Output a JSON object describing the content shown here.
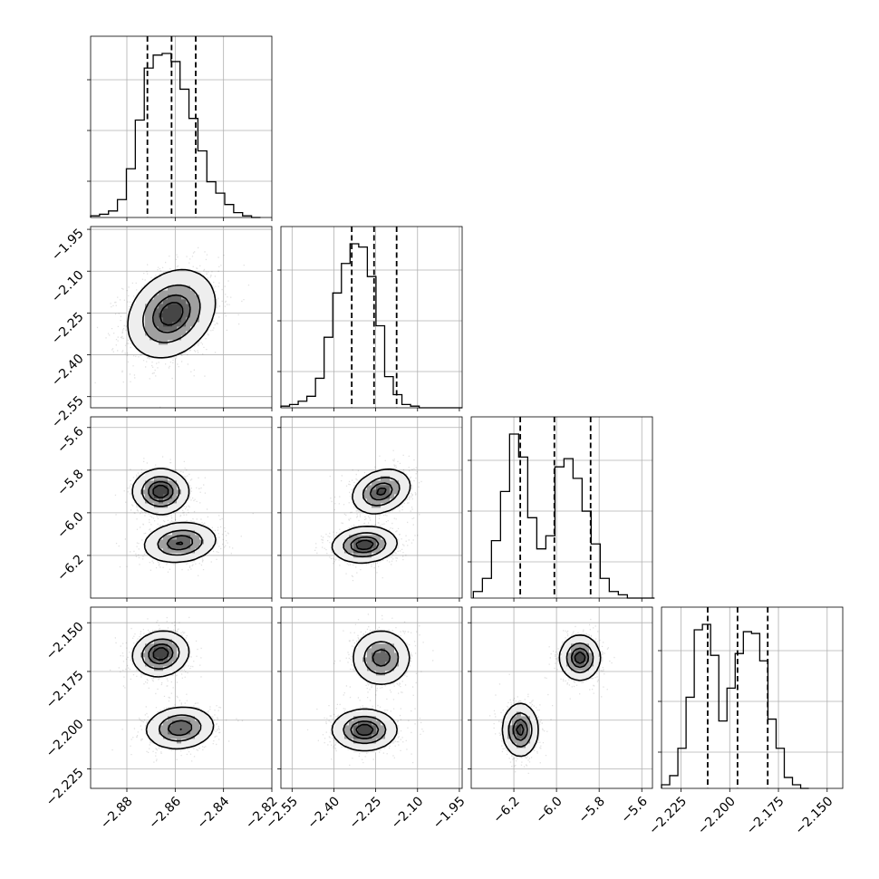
{
  "chart_data": {
    "type": "corner",
    "grid": true,
    "parameters": [
      {
        "range": [
          -2.895,
          -2.82
        ],
        "ticks": [
          -2.88,
          -2.86,
          -2.84,
          -2.82
        ],
        "tick_labels": [
          "−2.88",
          "−2.86",
          "−2.84",
          "−2.82"
        ],
        "quantiles": [
          -2.8715,
          -2.8615,
          -2.8515
        ],
        "histogram": {
          "bin_start": -2.895,
          "bin_width": 0.0037,
          "counts": [
            1,
            2,
            4,
            11,
            30,
            60,
            92,
            100,
            101,
            96,
            79,
            61,
            41,
            22,
            15,
            8,
            3,
            1,
            0
          ]
        }
      },
      {
        "range": [
          -2.59,
          -1.94
        ],
        "ticks": [
          -2.55,
          -2.4,
          -2.25,
          -2.1,
          -1.95
        ],
        "tick_labels": [
          "−2.55",
          "−2.40",
          "−2.25",
          "−2.10",
          "−1.95"
        ],
        "quantiles": [
          -2.336,
          -2.256,
          -2.175
        ],
        "histogram": {
          "bin_start": -2.59,
          "bin_width": 0.031,
          "counts": [
            1,
            2,
            4,
            7,
            18,
            43,
            70,
            88,
            100,
            98,
            80,
            50,
            19,
            8,
            2,
            1,
            0,
            0,
            0,
            0,
            0
          ]
        }
      },
      {
        "range": [
          -6.4,
          -5.55
        ],
        "ticks": [
          -6.2,
          -6.0,
          -5.8,
          -5.6
        ],
        "tick_labels": [
          "−6.2",
          "−6.0",
          "−5.8",
          "−5.6"
        ],
        "quantiles": [
          -6.17,
          -6.01,
          -5.84
        ],
        "histogram": {
          "bin_start": -6.39,
          "bin_width": 0.0425,
          "counts": [
            4,
            12,
            35,
            65,
            100,
            86,
            49,
            30,
            38,
            80,
            85,
            73,
            53,
            33,
            12,
            4,
            2,
            0,
            0,
            0
          ]
        }
      },
      {
        "range": [
          -2.235,
          -2.142
        ],
        "ticks": [
          -2.225,
          -2.2,
          -2.175,
          -2.15
        ],
        "tick_labels": [
          "−2.225",
          "−2.200",
          "−2.175",
          "−2.150"
        ],
        "quantiles": [
          -2.2113,
          -2.196,
          -2.1805
        ],
        "histogram": {
          "bin_start": -2.235,
          "bin_width": 0.0042,
          "counts": [
            2,
            7,
            22,
            50,
            87,
            90,
            73,
            37,
            55,
            74,
            86,
            85,
            70,
            38,
            22,
            6,
            2,
            0
          ]
        }
      }
    ],
    "panels_2d": [
      {
        "x": 0,
        "y": 1,
        "modes": [
          {
            "cx": -2.8615,
            "cy": -2.253,
            "sx": 0.0086,
            "sy": 0.075,
            "rho": 0.25
          }
        ]
      },
      {
        "x": 0,
        "y": 2,
        "modes": [
          {
            "cx": -2.866,
            "cy": -5.9,
            "sx": 0.0055,
            "sy": 0.05,
            "rho": 0.0
          },
          {
            "cx": -2.858,
            "cy": -6.14,
            "sx": 0.0072,
            "sy": 0.045,
            "rho": 0.15
          }
        ]
      },
      {
        "x": 0,
        "y": 3,
        "modes": [
          {
            "cx": -2.866,
            "cy": -2.166,
            "sx": 0.0055,
            "sy": 0.0055,
            "rho": 0.1
          },
          {
            "cx": -2.858,
            "cy": -2.204,
            "sx": 0.0068,
            "sy": 0.0052,
            "rho": 0.1
          }
        ]
      },
      {
        "x": 1,
        "y": 2,
        "modes": [
          {
            "cx": -2.23,
            "cy": -5.9,
            "sx": 0.05,
            "sy": 0.05,
            "rho": 0.25
          },
          {
            "cx": -2.29,
            "cy": -6.15,
            "sx": 0.055,
            "sy": 0.04,
            "rho": 0.1
          }
        ]
      },
      {
        "x": 1,
        "y": 3,
        "modes": [
          {
            "cx": -2.23,
            "cy": -2.168,
            "sx": 0.05,
            "sy": 0.0068,
            "rho": 0.0
          },
          {
            "cx": -2.29,
            "cy": -2.205,
            "sx": 0.055,
            "sy": 0.005,
            "rho": 0.0
          }
        ]
      },
      {
        "x": 2,
        "y": 3,
        "modes": [
          {
            "cx": -5.89,
            "cy": -2.168,
            "sx": 0.045,
            "sy": 0.0055,
            "rho": 0.0
          },
          {
            "cx": -6.17,
            "cy": -2.205,
            "sx": 0.04,
            "sy": 0.0065,
            "rho": 0.0
          }
        ]
      }
    ]
  }
}
